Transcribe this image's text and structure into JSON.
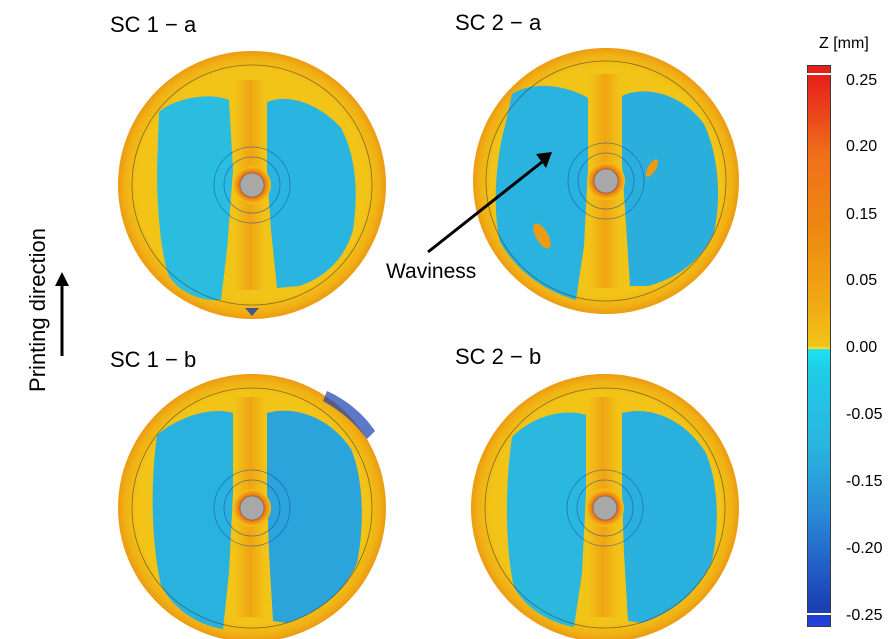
{
  "panels": [
    {
      "title": "SC 1 − a"
    },
    {
      "title": "SC 2 − a"
    },
    {
      "title": "SC 1 − b"
    },
    {
      "title": "SC 2 − b"
    }
  ],
  "side_label": "Printing direction",
  "annotation": "Waviness",
  "colorbar": {
    "title": "Z [mm]",
    "ticks": [
      "0.25",
      "0.20",
      "0.15",
      "0.05",
      "0.00",
      "-0.05",
      "-0.15",
      "-0.20",
      "-0.25"
    ]
  },
  "colors": {
    "yellow": "#f2c417",
    "orange": "#ee8a10",
    "red": "#e8201a",
    "cyan": "#1fd3e8",
    "blue": "#2aa8dc",
    "deep_blue": "#1a3fb0",
    "hub_gray": "#a8a8a8"
  }
}
